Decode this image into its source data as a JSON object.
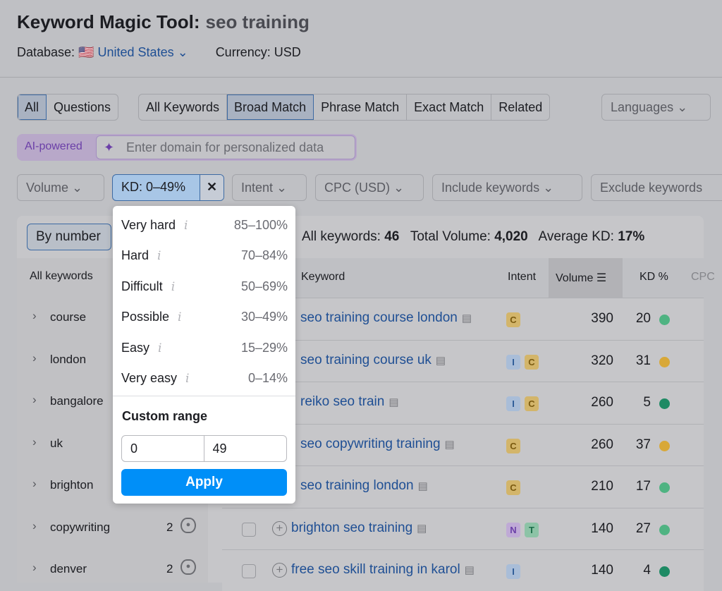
{
  "header": {
    "title": "Keyword Magic Tool:",
    "query": "seo training",
    "database_label": "Database:",
    "database_flag": "🇺🇸",
    "database_value": "United States",
    "currency_label": "Currency:",
    "currency_value": "USD"
  },
  "tabs_type": [
    {
      "label": "All",
      "active": true
    },
    {
      "label": "Questions"
    }
  ],
  "tabs_match": [
    {
      "label": "All Keywords"
    },
    {
      "label": "Broad Match",
      "active": true
    },
    {
      "label": "Phrase Match"
    },
    {
      "label": "Exact Match"
    },
    {
      "label": "Related"
    }
  ],
  "languages": "Languages",
  "ai": {
    "label": "AI-powered",
    "placeholder": "Enter domain for personalized data"
  },
  "filters": {
    "volume": "Volume",
    "kd": "KD: 0–49%",
    "intent": "Intent",
    "cpc": "CPC (USD)",
    "include": "Include keywords",
    "exclude": "Exclude keywords"
  },
  "group_by": "By number",
  "stats": {
    "keywords_label": "All keywords:",
    "keywords": "46",
    "volume_label": "Total Volume:",
    "volume": "4,020",
    "kd_label": "Average KD:",
    "kd": "17%"
  },
  "table": {
    "headers": {
      "keyword": "Keyword",
      "intent": "Intent",
      "volume": "Volume",
      "kd": "KD %",
      "cpc": "CPC"
    },
    "rows": [
      {
        "keyword": "seo training course london",
        "intent": [
          "C"
        ],
        "volume": "390",
        "kd": "20",
        "kd_color": "#4fb382"
      },
      {
        "keyword": "seo training course uk",
        "intent": [
          "I",
          "C"
        ],
        "volume": "320",
        "kd": "31",
        "kd_color": "#d8a838"
      },
      {
        "keyword": "reiko seo train",
        "intent": [
          "I",
          "C"
        ],
        "volume": "260",
        "kd": "5",
        "kd_color": "#1e8a64"
      },
      {
        "keyword": "seo copywriting training",
        "intent": [
          "C"
        ],
        "volume": "260",
        "kd": "37",
        "kd_color": "#d8a838"
      },
      {
        "keyword": "seo training london",
        "intent": [
          "C"
        ],
        "volume": "210",
        "kd": "17",
        "kd_color": "#4fb382"
      },
      {
        "keyword": "brighton seo training",
        "intent": [
          "N",
          "T"
        ],
        "volume": "140",
        "kd": "27",
        "kd_color": "#4fb382"
      },
      {
        "keyword": "free seo skill training in karol",
        "intent": [
          "I"
        ],
        "volume": "140",
        "kd": "4",
        "kd_color": "#1e8a64"
      }
    ]
  },
  "sidebar": {
    "header": "All keywords",
    "items": [
      {
        "name": "course"
      },
      {
        "name": "london"
      },
      {
        "name": "bangalore"
      },
      {
        "name": "uk"
      },
      {
        "name": "brighton"
      },
      {
        "name": "copywriting",
        "count": "2"
      },
      {
        "name": "denver",
        "count": "2"
      }
    ]
  },
  "kd_popup": {
    "options": [
      {
        "name": "Very hard",
        "range": "85–100%"
      },
      {
        "name": "Hard",
        "range": "70–84%"
      },
      {
        "name": "Difficult",
        "range": "50–69%"
      },
      {
        "name": "Possible",
        "range": "30–49%"
      },
      {
        "name": "Easy",
        "range": "15–29%"
      },
      {
        "name": "Very easy",
        "range": "0–14%"
      }
    ],
    "custom_label": "Custom range",
    "from": "0",
    "to": "49",
    "apply": "Apply"
  },
  "intent_colors": {
    "C": [
      "#d3b56a",
      "#7a5a10"
    ],
    "I": [
      "#a9bdd8",
      "#2c5a96"
    ],
    "N": [
      "#bfaad6",
      "#6b3fa8"
    ],
    "T": [
      "#8cc3a6",
      "#1c6e4a"
    ]
  }
}
